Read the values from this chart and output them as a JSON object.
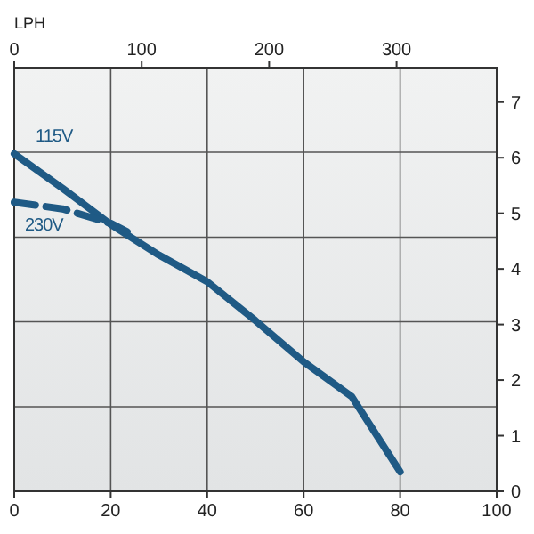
{
  "chart_data": {
    "type": "line",
    "x2label": "LPH",
    "xlim": [
      0,
      100
    ],
    "xticks": [
      0,
      20,
      40,
      60,
      80,
      100
    ],
    "x2lim": [
      0,
      378.5
    ],
    "x2ticks": [
      0,
      100,
      200,
      300
    ],
    "ylim": [
      0,
      7.62
    ],
    "yticks": [
      0,
      1,
      2,
      3,
      4,
      5,
      6,
      7
    ],
    "grid": "x",
    "ref_lines": [
      {
        "axis": "y",
        "value": 1.52,
        "color": "#555555"
      },
      {
        "axis": "y",
        "value": 3.05,
        "color": "#555555"
      },
      {
        "axis": "y",
        "value": 4.57,
        "color": "#555555"
      },
      {
        "axis": "y",
        "value": 6.1,
        "color": "#555555"
      }
    ],
    "series": [
      {
        "name": "115V",
        "color": "#1f5a85",
        "line_style": "solid",
        "x": [
          0,
          10,
          20,
          30,
          40,
          50,
          60,
          70,
          80
        ],
        "values": [
          6.07,
          5.45,
          4.8,
          4.25,
          3.77,
          3.07,
          2.33,
          1.7,
          0.35
        ]
      },
      {
        "name": "230V",
        "color": "#1f5a85",
        "line_style": "dashed",
        "x": [
          0,
          10,
          20,
          25
        ],
        "values": [
          5.2,
          5.08,
          4.82,
          4.6
        ]
      }
    ]
  }
}
